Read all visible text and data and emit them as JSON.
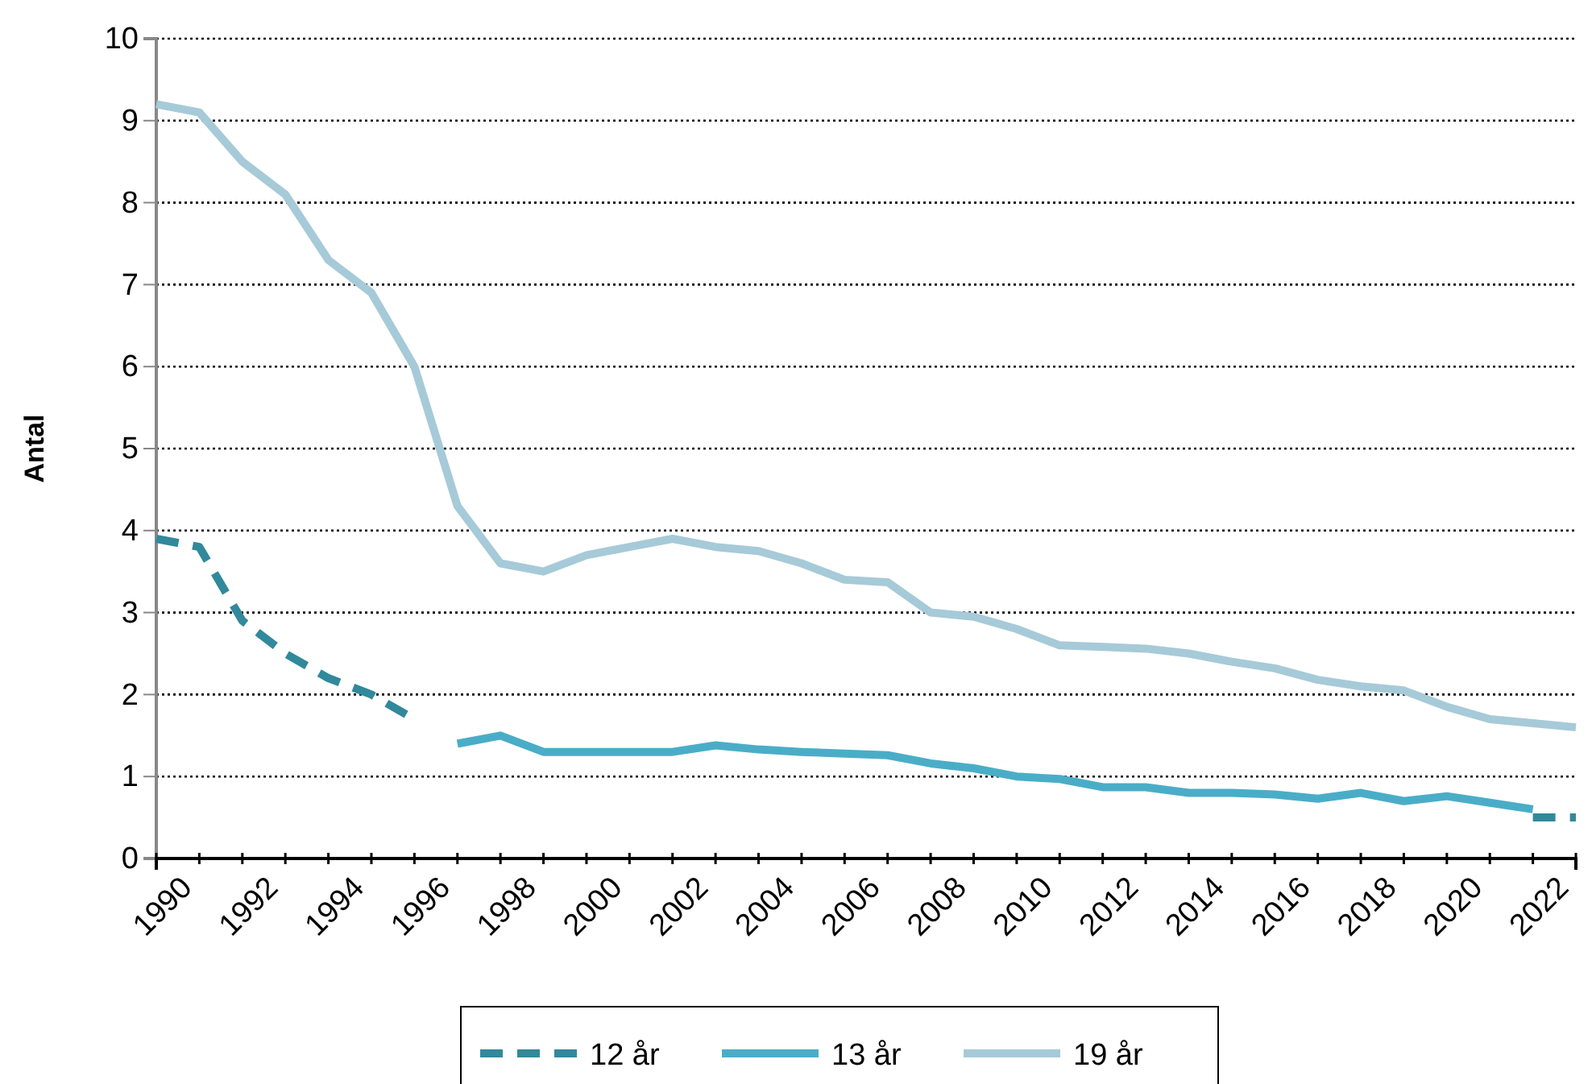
{
  "chart_data": {
    "type": "line",
    "ylabel": "Antal",
    "x": [
      1990,
      1991,
      1992,
      1993,
      1994,
      1995,
      1996,
      1997,
      1998,
      1999,
      2000,
      2001,
      2002,
      2003,
      2004,
      2005,
      2006,
      2007,
      2008,
      2009,
      2010,
      2011,
      2012,
      2013,
      2014,
      2015,
      2016,
      2017,
      2018,
      2019,
      2020,
      2021,
      2022,
      2023
    ],
    "xlim": [
      1990,
      2023
    ],
    "xticks": [
      1990,
      {
        "value": 1991,
        "label": null
      },
      1992,
      {
        "value": 1993,
        "label": null
      },
      1994,
      {
        "value": 1995,
        "label": null
      },
      1996,
      {
        "value": 1997,
        "label": null
      },
      1998,
      {
        "value": 1999,
        "label": null
      },
      2000,
      {
        "value": 2001,
        "label": null
      },
      2002,
      {
        "value": 2003,
        "label": null
      },
      2004,
      {
        "value": 2005,
        "label": null
      },
      2006,
      {
        "value": 2007,
        "label": null
      },
      2008,
      {
        "value": 2009,
        "label": null
      },
      2010,
      {
        "value": 2011,
        "label": null
      },
      2012,
      {
        "value": 2013,
        "label": null
      },
      2014,
      {
        "value": 2015,
        "label": null
      },
      2016,
      {
        "value": 2017,
        "label": null
      },
      2018,
      {
        "value": 2019,
        "label": null
      },
      2020,
      {
        "value": 2021,
        "label": null
      },
      2022,
      {
        "value": 2023,
        "label": null
      }
    ],
    "ylim": [
      0,
      10
    ],
    "yticks": [
      0,
      1,
      2,
      3,
      4,
      5,
      6,
      7,
      8,
      9,
      10
    ],
    "grid": "y",
    "legend": "bottom",
    "marker": "none",
    "series": [
      {
        "name": "12 år",
        "color": "#31899b",
        "line_style": "dashed",
        "values": [
          3.9,
          3.8,
          2.9,
          2.5,
          2.2,
          2.0,
          1.7,
          null,
          null,
          null,
          null,
          null,
          null,
          null,
          null,
          null,
          null,
          null,
          null,
          null,
          null,
          null,
          null,
          null,
          null,
          null,
          null,
          null,
          null,
          null,
          null,
          null,
          0.5,
          0.5
        ]
      },
      {
        "name": "13 år",
        "color": "#4aadc7",
        "line_style": "solid",
        "values": [
          null,
          null,
          null,
          null,
          null,
          null,
          null,
          1.4,
          1.5,
          1.3,
          1.3,
          1.3,
          1.3,
          1.38,
          1.33,
          1.3,
          1.28,
          1.26,
          1.16,
          1.1,
          1.0,
          0.97,
          0.87,
          0.87,
          0.8,
          0.8,
          0.78,
          0.73,
          0.8,
          0.7,
          0.76,
          0.68,
          0.6,
          null
        ]
      },
      {
        "name": "19 år",
        "color": "#a6cad8",
        "line_style": "solid",
        "values": [
          9.2,
          9.1,
          8.5,
          8.1,
          7.3,
          6.9,
          6.0,
          4.3,
          3.6,
          3.5,
          3.7,
          3.8,
          3.9,
          3.8,
          3.75,
          3.6,
          3.4,
          3.37,
          3.0,
          2.95,
          2.8,
          2.6,
          2.58,
          2.56,
          2.5,
          2.4,
          2.32,
          2.18,
          2.1,
          2.05,
          1.85,
          1.7,
          1.65,
          1.6
        ]
      }
    ]
  }
}
